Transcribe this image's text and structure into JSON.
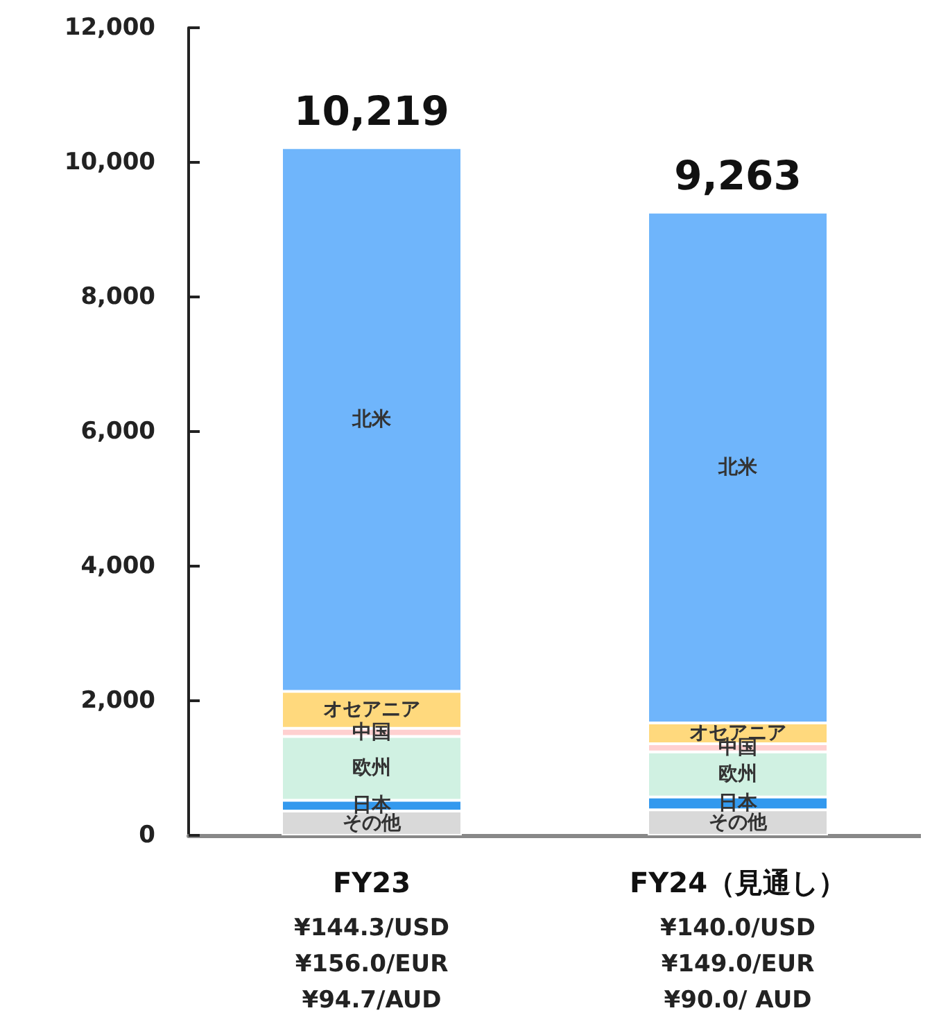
{
  "chart_data": {
    "type": "bar",
    "stacked": true,
    "categories": [
      "FY23\n¥144.3/USD\n¥156.0/EUR\n¥94.7/AUD",
      "FY24（見通し）\n¥140.0/USD\n¥149.0/EUR\n¥90.0/ AUD"
    ],
    "series": [
      {
        "name": "その他",
        "color": "#d9d9d9",
        "values": [
          360,
          380
        ]
      },
      {
        "name": "日本",
        "color": "#3399ee",
        "values": [
          160,
          190
        ]
      },
      {
        "name": "欧州",
        "color": "#d0f1e2",
        "values": [
          950,
          670
        ]
      },
      {
        "name": "中国",
        "color": "#ffd0d0",
        "values": [
          120,
          120
        ]
      },
      {
        "name": "オセアニア",
        "color": "#ffd97d",
        "values": [
          550,
          310
        ]
      },
      {
        "name": "北米",
        "color": "#6fb5fb",
        "values": [
          8080,
          7590
        ]
      }
    ],
    "totals": [
      "10,219",
      "9,263"
    ],
    "ylim": [
      0,
      12000
    ],
    "yticks": [
      0,
      {
        "value": 2000,
        "label": "2,000"
      },
      {
        "value": 4000,
        "label": "4,000"
      },
      {
        "value": 6000,
        "label": "6,000"
      },
      {
        "value": 8000,
        "label": "8,000"
      },
      {
        "value": 10000,
        "label": "10,000"
      },
      {
        "value": 12000,
        "label": "12,000"
      }
    ],
    "grid": false,
    "legend": false
  }
}
